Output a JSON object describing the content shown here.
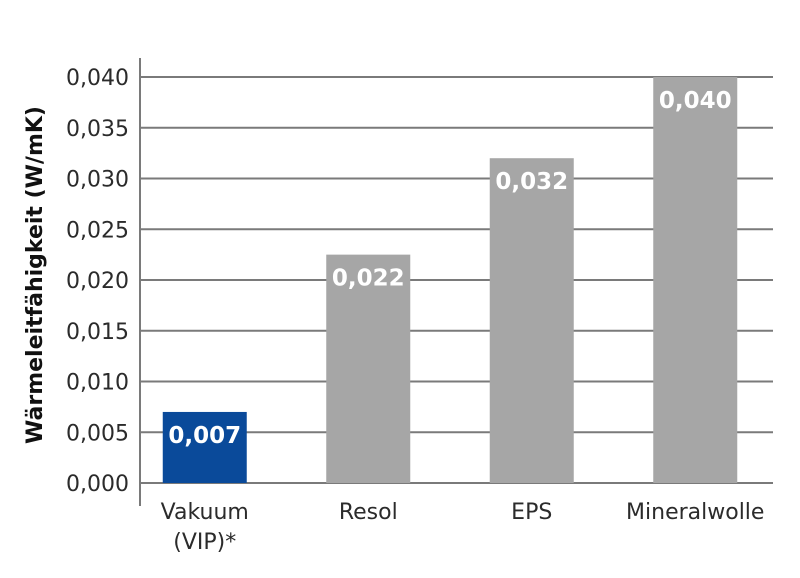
{
  "chart_data": {
    "type": "bar",
    "ylabel": "Wärmeleitfähigkeit (W/mK)",
    "ylim": [
      0,
      0.04
    ],
    "yticks": [
      "0,000",
      "0,005",
      "0,010",
      "0,015",
      "0,020",
      "0,025",
      "0,030",
      "0,035",
      "0,040"
    ],
    "categories": [
      {
        "lines": [
          "Vakuum",
          "(VIP)*"
        ]
      },
      {
        "lines": [
          "Resol"
        ]
      },
      {
        "lines": [
          "EPS"
        ]
      },
      {
        "lines": [
          "Mineralwolle"
        ]
      }
    ],
    "values": [
      0.007,
      0.0225,
      0.032,
      0.04
    ],
    "data_labels": [
      "0,007",
      "0,022",
      "0,032",
      "0,040"
    ],
    "colors": [
      "#0a4a9a",
      "#a6a6a6",
      "#a6a6a6",
      "#a6a6a6"
    ],
    "grid": true
  }
}
